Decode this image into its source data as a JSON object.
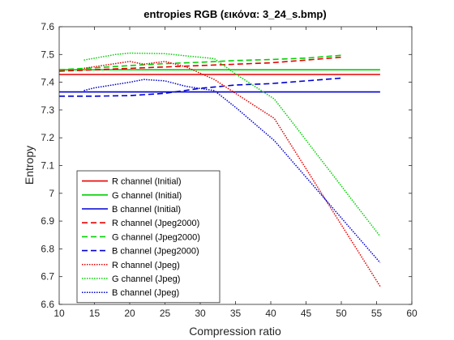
{
  "chart_data": {
    "type": "line",
    "title": "entropies RGB (εικόνα: 3_24_s.bmp)",
    "xlabel": "Compression ratio",
    "ylabel": "Entropy",
    "xlim": [
      10,
      60
    ],
    "ylim": [
      6.6,
      7.6
    ],
    "xticks": [
      10,
      15,
      20,
      25,
      30,
      35,
      40,
      45,
      50,
      55,
      60
    ],
    "yticks": [
      6.6,
      6.7,
      6.8,
      6.9,
      7.0,
      7.1,
      7.2,
      7.3,
      7.4,
      7.5,
      7.6
    ],
    "xtick_labels": [
      "10",
      "15",
      "20",
      "25",
      "30",
      "35",
      "40",
      "45",
      "50",
      "55",
      "60"
    ],
    "ytick_labels": [
      "6.6",
      "6.7",
      "6.8",
      "6.9",
      "7",
      "7.1",
      "7.2",
      "7.3",
      "7.4",
      "7.5",
      "7.6"
    ],
    "grid": false,
    "legend_position": "bottom-left",
    "series": [
      {
        "name": "R channel (Initial)",
        "color": "#e60000",
        "style": "solid",
        "x": [
          10,
          55.5
        ],
        "y": [
          7.428,
          7.428
        ]
      },
      {
        "name": "G channel (Initial)",
        "color": "#00d000",
        "style": "solid",
        "x": [
          10,
          55.5
        ],
        "y": [
          7.445,
          7.445
        ]
      },
      {
        "name": "B channel (Initial)",
        "color": "#0000d0",
        "style": "solid",
        "x": [
          10,
          55.5
        ],
        "y": [
          7.365,
          7.365
        ]
      },
      {
        "name": "R channel (Jpeg2000)",
        "color": "#e60000",
        "style": "dashed",
        "x": [
          10,
          15,
          20,
          25,
          30,
          35,
          40,
          45,
          50
        ],
        "y": [
          7.44,
          7.445,
          7.45,
          7.455,
          7.46,
          7.465,
          7.47,
          7.48,
          7.49
        ]
      },
      {
        "name": "G channel (Jpeg2000)",
        "color": "#00d000",
        "style": "dashed",
        "x": [
          10,
          15,
          20,
          25,
          30,
          35,
          40,
          45,
          50
        ],
        "y": [
          7.445,
          7.452,
          7.46,
          7.467,
          7.472,
          7.478,
          7.482,
          7.487,
          7.497
        ]
      },
      {
        "name": "B channel (Jpeg2000)",
        "color": "#0000d0",
        "style": "dashed",
        "x": [
          10,
          15,
          20,
          25,
          30,
          35,
          40,
          45,
          50
        ],
        "y": [
          7.35,
          7.35,
          7.352,
          7.36,
          7.378,
          7.39,
          7.395,
          7.405,
          7.415
        ]
      },
      {
        "name": "R channel (Jpeg)",
        "color": "#e60000",
        "style": "dotted",
        "x": [
          13.5,
          20,
          22,
          25,
          28,
          32,
          35,
          40.5,
          55.5
        ],
        "y": [
          7.45,
          7.475,
          7.465,
          7.475,
          7.455,
          7.41,
          7.36,
          7.27,
          6.665
        ]
      },
      {
        "name": "G channel (Jpeg)",
        "color": "#00d000",
        "style": "dotted",
        "x": [
          13.5,
          18,
          20,
          25,
          28,
          32,
          35,
          40.5,
          55.5
        ],
        "y": [
          7.48,
          7.5,
          7.505,
          7.503,
          7.495,
          7.485,
          7.43,
          7.34,
          6.845
        ]
      },
      {
        "name": "B channel (Jpeg)",
        "color": "#0000d0",
        "style": "dotted",
        "x": [
          13.5,
          15,
          20,
          22,
          25,
          28,
          32,
          35,
          40.5,
          55.5
        ],
        "y": [
          7.37,
          7.38,
          7.4,
          7.41,
          7.405,
          7.385,
          7.37,
          7.31,
          7.19,
          6.75
        ]
      }
    ]
  }
}
